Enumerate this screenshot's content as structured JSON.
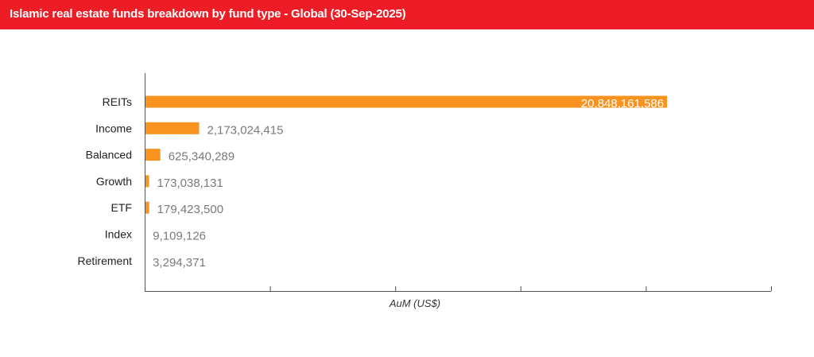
{
  "header": {
    "title": "Islamic real estate funds breakdown by fund type - Global  (30-Sep-2025)",
    "background": "#ee1c25"
  },
  "chart_data": {
    "type": "bar",
    "orientation": "horizontal",
    "categories": [
      "REITs",
      "Income",
      "Balanced",
      "Growth",
      "ETF",
      "Index",
      "Retirement"
    ],
    "values": [
      20848161586,
      2173024415,
      625340289,
      173038131,
      179423500,
      9109126,
      3294371
    ],
    "value_labels": [
      "20,848,161,586",
      "2,173,024,415",
      "625,340,289",
      "173,038,131",
      "179,423,500",
      "9,109,126",
      "3,294,371"
    ],
    "xlabel": "AuM (US$)",
    "ylabel": "",
    "xlim": [
      0,
      25000000000
    ],
    "x_tick_count": 5,
    "x_tick_labels_shown": false,
    "grid": false,
    "legend": "none",
    "bar_color": "#f7931e"
  }
}
